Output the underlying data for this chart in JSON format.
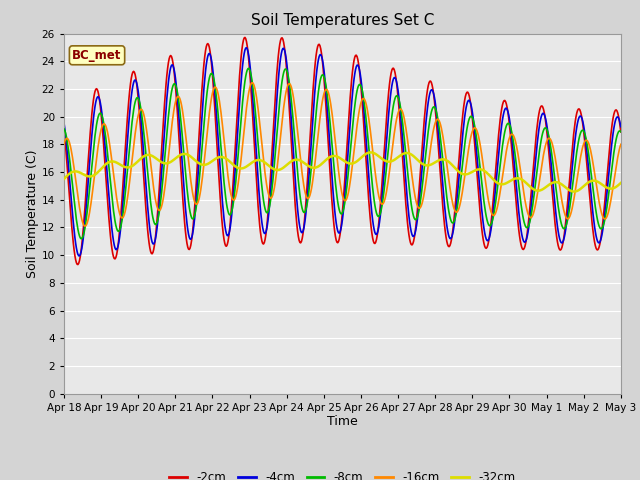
{
  "title": "Soil Temperatures Set C",
  "xlabel": "Time",
  "ylabel": "Soil Temperature (C)",
  "annotation": "BC_met",
  "ylim": [
    0,
    26
  ],
  "yticks": [
    0,
    2,
    4,
    6,
    8,
    10,
    12,
    14,
    16,
    18,
    20,
    22,
    24,
    26
  ],
  "x_labels": [
    "Apr 18",
    "Apr 19",
    "Apr 20",
    "Apr 21",
    "Apr 22",
    "Apr 23",
    "Apr 24",
    "Apr 25",
    "Apr 26",
    "Apr 27",
    "Apr 28",
    "Apr 29",
    "Apr 30",
    "May 1",
    "May 2",
    "May 3"
  ],
  "series": {
    "-2cm": {
      "color": "#dd0000",
      "lw": 1.2
    },
    "-4cm": {
      "color": "#0000dd",
      "lw": 1.2
    },
    "-8cm": {
      "color": "#00bb00",
      "lw": 1.2
    },
    "-16cm": {
      "color": "#ff8800",
      "lw": 1.2
    },
    "-32cm": {
      "color": "#dddd00",
      "lw": 1.8
    }
  },
  "fig_bg": "#d4d4d4",
  "plot_bg": "#e8e8e8",
  "grid_color": "#ffffff"
}
